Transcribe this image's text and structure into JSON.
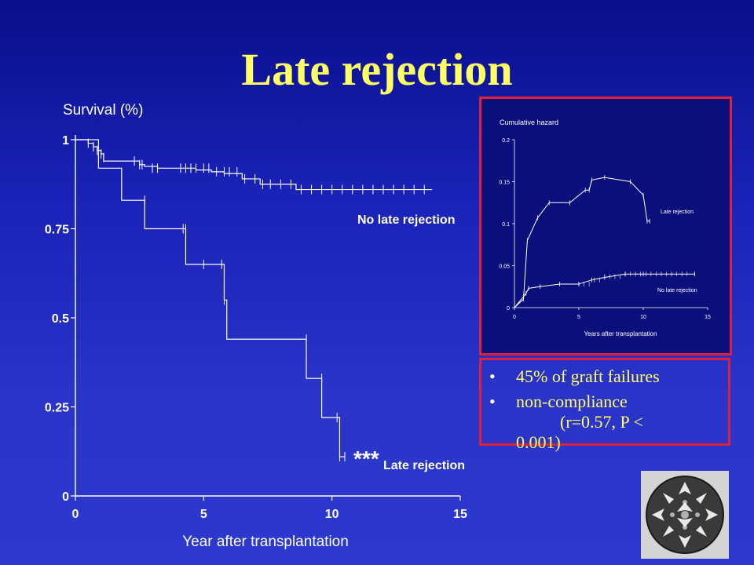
{
  "slide": {
    "title": "Late rejection"
  },
  "chart_data": [
    {
      "type": "line",
      "step": true,
      "ylabel": "Survival (%)",
      "xlabel": "Year after transplantation",
      "xlim": [
        0,
        15
      ],
      "ylim": [
        0,
        1
      ],
      "xticks": [
        "0",
        "5",
        "10",
        "15"
      ],
      "yticks": [
        "0",
        "0.25",
        "0.5",
        "0.75",
        "1"
      ],
      "series": [
        {
          "name": "No late rejection",
          "x": [
            0,
            0.5,
            0.7,
            0.85,
            1.0,
            1.1,
            2.5,
            2.7,
            3.2,
            4.3,
            4.7,
            5.3,
            5.8,
            6.5,
            7.2,
            8.6,
            13.9
          ],
          "y": [
            1,
            0.99,
            0.98,
            0.97,
            0.96,
            0.94,
            0.93,
            0.925,
            0.92,
            0.92,
            0.915,
            0.91,
            0.905,
            0.89,
            0.875,
            0.86,
            0.86
          ],
          "censored": [
            [
              0.5,
              0.99
            ],
            [
              0.7,
              0.98
            ],
            [
              0.85,
              0.97
            ],
            [
              1.0,
              0.96
            ],
            [
              1.1,
              0.95
            ],
            [
              2.3,
              0.94
            ],
            [
              2.5,
              0.93
            ],
            [
              2.6,
              0.93
            ],
            [
              3.0,
              0.92
            ],
            [
              3.2,
              0.92
            ],
            [
              4.1,
              0.92
            ],
            [
              4.3,
              0.92
            ],
            [
              4.5,
              0.92
            ],
            [
              4.7,
              0.92
            ],
            [
              5.0,
              0.92
            ],
            [
              5.2,
              0.92
            ],
            [
              5.5,
              0.91
            ],
            [
              5.8,
              0.91
            ],
            [
              6.0,
              0.91
            ],
            [
              6.3,
              0.91
            ],
            [
              6.6,
              0.89
            ],
            [
              7.0,
              0.89
            ],
            [
              7.3,
              0.875
            ],
            [
              7.6,
              0.875
            ],
            [
              8.0,
              0.875
            ],
            [
              8.4,
              0.875
            ],
            [
              8.8,
              0.86
            ],
            [
              9.2,
              0.86
            ],
            [
              9.6,
              0.86
            ],
            [
              10.0,
              0.86
            ],
            [
              10.4,
              0.86
            ],
            [
              10.8,
              0.86
            ],
            [
              11.2,
              0.86
            ],
            [
              11.6,
              0.86
            ],
            [
              12.0,
              0.86
            ],
            [
              12.4,
              0.86
            ],
            [
              12.8,
              0.86
            ],
            [
              13.2,
              0.86
            ],
            [
              13.6,
              0.86
            ]
          ]
        },
        {
          "name": "Late rejection",
          "x": [
            0,
            0.9,
            1.8,
            2.7,
            4.3,
            5.8,
            5.9,
            9.0,
            9.6,
            10.3,
            10.5
          ],
          "y": [
            1,
            0.92,
            0.83,
            0.75,
            0.65,
            0.55,
            0.44,
            0.33,
            0.22,
            0.11,
            0.11
          ],
          "censored": [
            [
              0.9,
              0.96
            ],
            [
              2.7,
              0.83
            ],
            [
              4.2,
              0.75
            ],
            [
              4.3,
              0.75
            ],
            [
              5.0,
              0.65
            ],
            [
              5.7,
              0.65
            ],
            [
              5.8,
              0.55
            ],
            [
              9.0,
              0.44
            ],
            [
              9.6,
              0.33
            ],
            [
              10.2,
              0.22
            ],
            [
              10.3,
              0.11
            ],
            [
              10.5,
              0.11
            ]
          ]
        }
      ],
      "labels": {
        "no_late": "No late rejection",
        "late": "Late rejection",
        "significance": "***"
      }
    },
    {
      "type": "line",
      "ylabel": "Cumulative hazard",
      "xlabel": "Years after transplantation",
      "xlim": [
        0,
        15
      ],
      "ylim": [
        0,
        0.2
      ],
      "xticks": [
        "0",
        "5",
        "10",
        "15"
      ],
      "yticks": [
        "0",
        "0.05",
        "0.1",
        "0.15",
        "0.2"
      ],
      "series": [
        {
          "name": "Late rejection",
          "x": [
            0,
            0.7,
            1.0,
            1.8,
            2.7,
            4.3,
            5.5,
            5.8,
            6.0,
            7.0,
            9.0,
            10.0,
            10.3,
            10.5
          ],
          "y": [
            0,
            0.01,
            0.08,
            0.107,
            0.125,
            0.125,
            0.14,
            0.14,
            0.152,
            0.155,
            0.15,
            0.134,
            0.103,
            0.103
          ]
        },
        {
          "name": "No late rejection",
          "x": [
            0,
            0.7,
            0.9,
            1.1,
            2.0,
            3.5,
            5.0,
            6.0,
            7.0,
            8.6,
            10.0,
            14.0
          ],
          "y": [
            0,
            0.013,
            0.017,
            0.023,
            0.025,
            0.028,
            0.028,
            0.033,
            0.036,
            0.04,
            0.04,
            0.04
          ]
        }
      ],
      "labels": {
        "late": "Late rejection",
        "no_late": "No late rejection"
      }
    }
  ],
  "bullets": {
    "items": [
      {
        "line1": "45% of graft failures",
        "line2": ""
      },
      {
        "line1": "non-compliance",
        "line2": "(r=0.57, P <",
        "line3": "0.001)"
      }
    ],
    "bullet_glyph": "•"
  },
  "colors": {
    "title": "#ffff66",
    "text": "#ffff66",
    "border": "#e0203a",
    "line": "#ffffff"
  },
  "image": {
    "description_icon": "escher-circle-limit-icon"
  }
}
